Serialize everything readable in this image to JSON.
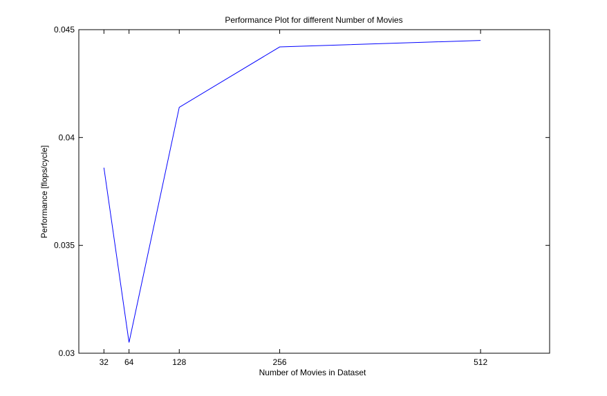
{
  "chart_data": {
    "type": "line",
    "title": "Performance Plot for different Number of Movies",
    "xlabel": "Number of Movies in Dataset",
    "ylabel": "Performance [flops/cycle]",
    "xlim": [
      0,
      600
    ],
    "ylim": [
      0.03,
      0.045
    ],
    "xticks": [
      32,
      64,
      128,
      256,
      512
    ],
    "xtick_labels": [
      "32",
      "64",
      "128",
      "256",
      "512"
    ],
    "yticks": [
      0.03,
      0.035,
      0.04,
      0.045
    ],
    "ytick_labels": [
      "0.03",
      "0.035",
      "0.04",
      "0.045"
    ],
    "grid": false,
    "series": [
      {
        "color": "#0000ff",
        "x": [
          32,
          64,
          128,
          256,
          512
        ],
        "y": [
          0.0386,
          0.0305,
          0.0414,
          0.0442,
          0.0445
        ]
      }
    ]
  }
}
